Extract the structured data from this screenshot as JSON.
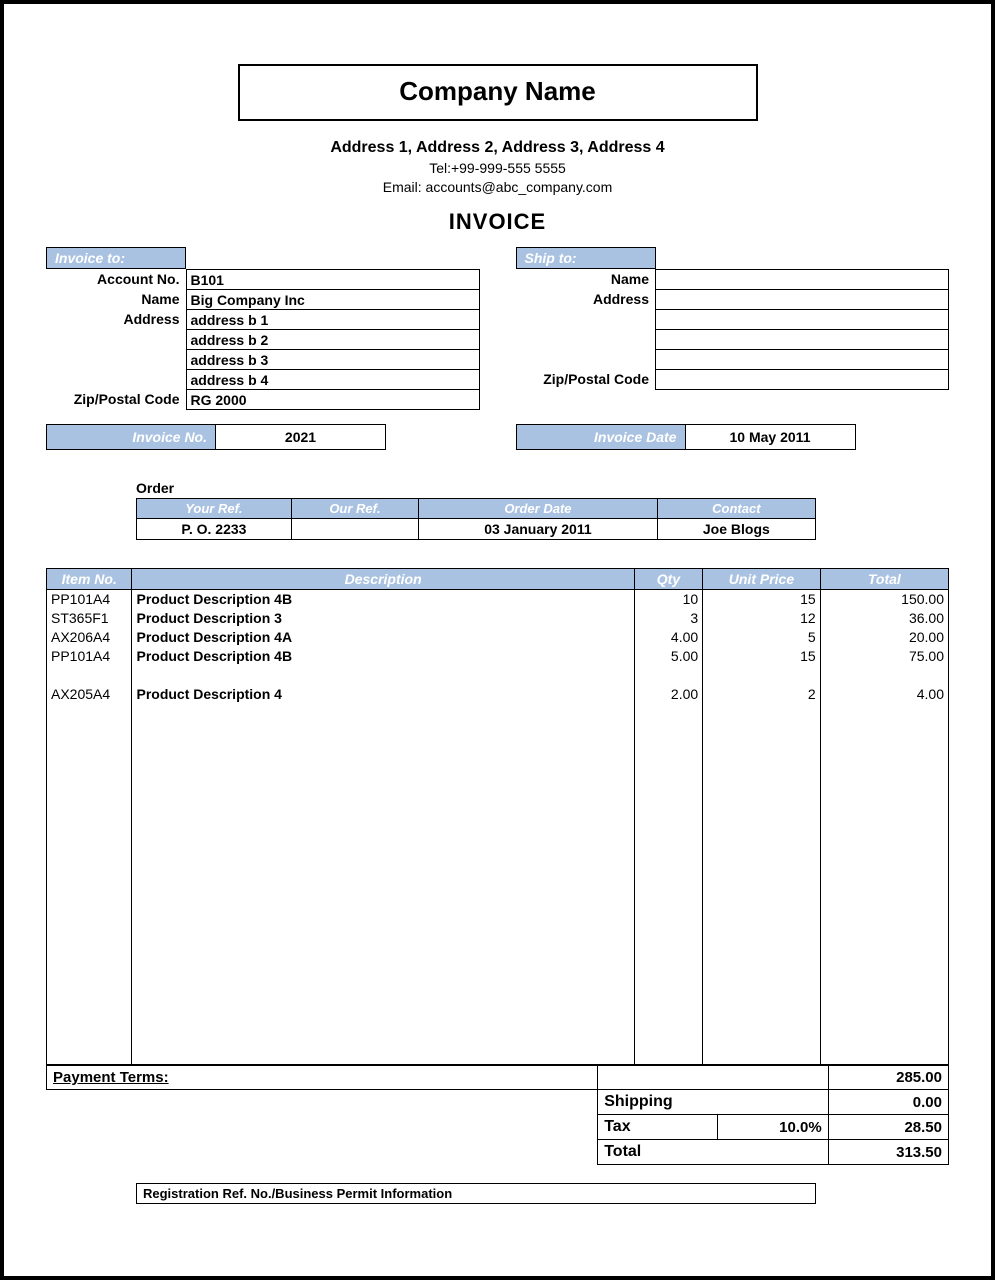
{
  "colors": {
    "header_bg": "#aac2e2",
    "header_fg": "#ffffff",
    "border": "#000000",
    "page_bg": "#ffffff",
    "text": "#000000"
  },
  "header": {
    "company_name": "Company Name",
    "address_line": "Address 1, Address 2, Address 3, Address 4",
    "tel": "Tel:+99-999-555 5555",
    "email": "Email: accounts@abc_company.com",
    "title": "INVOICE"
  },
  "invoice_to": {
    "section": "Invoice to:",
    "labels": {
      "account_no": "Account No.",
      "name": "Name",
      "address": "Address",
      "zip": "Zip/Postal Code"
    },
    "account_no": "B101",
    "name": "Big Company Inc",
    "address": [
      "address b 1",
      "address b 2",
      "address b 3",
      "address b 4"
    ],
    "zip": "RG 2000"
  },
  "ship_to": {
    "section": "Ship to:",
    "labels": {
      "name": "Name",
      "address": "Address",
      "zip": "Zip/Postal Code"
    },
    "name": "",
    "address": [
      "",
      "",
      "",
      ""
    ],
    "zip": ""
  },
  "meta": {
    "invoice_no_label": "Invoice No.",
    "invoice_no": "2021",
    "invoice_date_label": "Invoice Date",
    "invoice_date": "10 May 2011"
  },
  "order": {
    "caption": "Order",
    "columns": [
      "Your Ref.",
      "Our Ref.",
      "Order Date",
      "Contact"
    ],
    "row": [
      "P. O. 2233",
      "",
      "03 January 2011",
      "Joe Blogs"
    ]
  },
  "items": {
    "columns": [
      "Item No.",
      "Description",
      "Qty",
      "Unit Price",
      "Total"
    ],
    "rows": [
      {
        "item": "PP101A4",
        "desc": "Product Description 4B",
        "qty": "10",
        "price": "15",
        "total": "150.00"
      },
      {
        "item": "ST365F1",
        "desc": "Product Description 3",
        "qty": "3",
        "price": "12",
        "total": "36.00"
      },
      {
        "item": "AX206A4",
        "desc": "Product Description 4A",
        "qty": "4.00",
        "price": "5",
        "total": "20.00"
      },
      {
        "item": "PP101A4",
        "desc": "Product Description 4B",
        "qty": "5.00",
        "price": "15",
        "total": "75.00"
      },
      null,
      {
        "item": "AX205A4",
        "desc": "Product Description 4",
        "qty": "2.00",
        "price": "2",
        "total": "4.00"
      }
    ],
    "filler_rows": 19
  },
  "totals": {
    "payment_terms_label": "Payment Terms:",
    "subtotal": "285.00",
    "shipping_label": "Shipping",
    "shipping": "0.00",
    "tax_label": "Tax",
    "tax_rate": "10.0%",
    "tax": "28.50",
    "total_label": "Total",
    "total": "313.50"
  },
  "footer": {
    "registration": "Registration Ref. No./Business Permit Information"
  }
}
